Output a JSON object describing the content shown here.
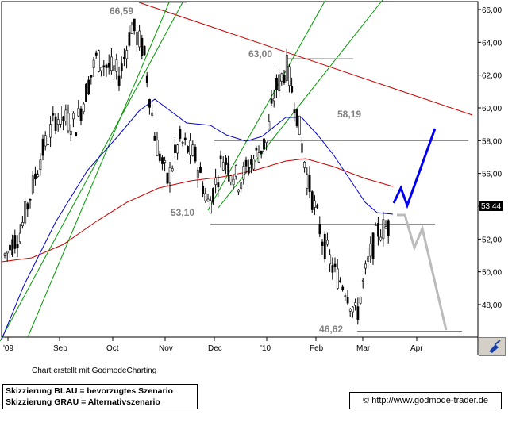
{
  "chart_data": {
    "type": "candlestick",
    "y_ticks": [
      "48,00",
      "50,00",
      "52,00",
      "54,00",
      "56,00",
      "58,00",
      "60,00",
      "62,00",
      "64,00",
      "66,00"
    ],
    "x_ticks": [
      "'09",
      "Sep",
      "Oct",
      "Nov",
      "Dec",
      "'10",
      "Feb",
      "Mar",
      "Apr"
    ],
    "ylim": [
      46.0,
      66.5
    ],
    "last_price": "53,44",
    "annotations": [
      "66,59",
      "63,00",
      "58,19",
      "53,10",
      "46,62"
    ],
    "support_resistance_levels": [
      63.0,
      58.19,
      53.1,
      46.62
    ],
    "ma_blue_name": "",
    "ma_red_name": "",
    "scenario_blue": [
      [
        53.9,
        53.4,
        57.9
      ]
    ],
    "scenario_gray": [
      [
        52.6,
        51.2,
        52.1,
        46.8
      ]
    ],
    "colors": {
      "up": "#000000",
      "ma_fast": "#0000cc",
      "ma_slow": "#cc0000",
      "trend": "#009900",
      "downtrend": "#cc0000",
      "level": "#808080",
      "scenario_blue": "#0000ee",
      "scenario_gray": "#bbbbbb"
    }
  },
  "texts": {
    "credit": "Chart erstellt mit GodmodeCharting",
    "legend_blue": "Skizzierung BLAU = bevorzugtes Szenario",
    "legend_gray": "Skizzierung GRAU = Alternativszenario",
    "url": "http://www.godmode-trader.de",
    "copyright_symbol": "©"
  }
}
